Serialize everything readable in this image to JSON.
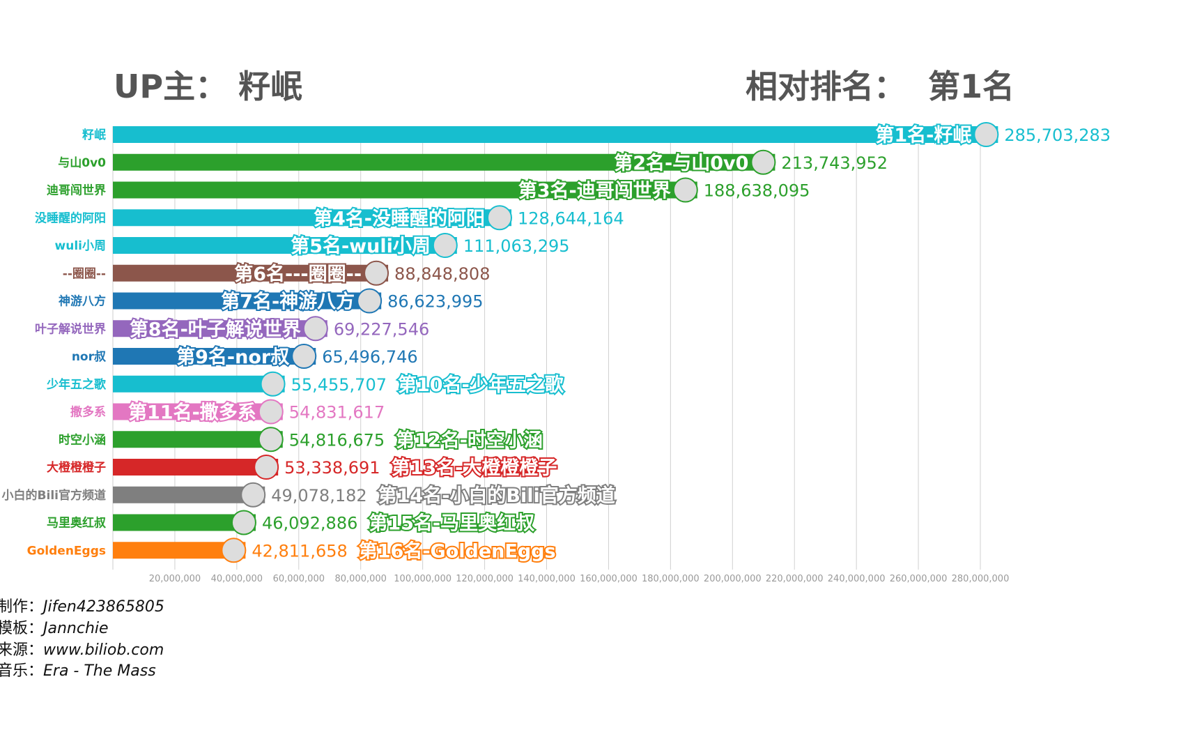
{
  "header": {
    "up_label": "UP主：",
    "up_name": "籽岷",
    "rank_label": "相对排名：",
    "rank_value": "第1名"
  },
  "chart_data": {
    "type": "bar",
    "orientation": "horizontal",
    "xlim": [
      0,
      290000000
    ],
    "grid": true,
    "xticks": [
      20000000,
      40000000,
      60000000,
      80000000,
      100000000,
      120000000,
      140000000,
      160000000,
      180000000,
      200000000,
      220000000,
      240000000,
      260000000,
      280000000
    ],
    "xtick_labels": [
      "20,000,000",
      "40,000,000",
      "60,000,000",
      "80,000,000",
      "100,000,000",
      "120,000,000",
      "140,000,000",
      "160,000,000",
      "180,000,000",
      "200,000,000",
      "220,000,000",
      "240,000,000",
      "260,000,000",
      "280,000,000"
    ],
    "bars": [
      {
        "name": "籽岷",
        "bar_label": "第1名-籽岷",
        "value": 285703283,
        "value_label": "285,703,283",
        "color": "#17becf"
      },
      {
        "name": "与山0v0",
        "bar_label": "第2名-与山0v0",
        "value": 213743952,
        "value_label": "213,743,952",
        "color": "#2ca02c"
      },
      {
        "name": "迪哥闯世界",
        "bar_label": "第3名-迪哥闯世界",
        "value": 188638095,
        "value_label": "188,638,095",
        "color": "#2ca02c"
      },
      {
        "name": "没睡醒的阿阳",
        "bar_label": "第4名-没睡醒的阿阳",
        "value": 128644164,
        "value_label": "128,644,164",
        "color": "#17becf"
      },
      {
        "name": "wuli小周",
        "bar_label": "第5名-wuli小周",
        "value": 111063295,
        "value_label": "111,063,295",
        "color": "#17becf"
      },
      {
        "name": "--圈圈--",
        "bar_label": "第6名---圈圈--",
        "value": 88848808,
        "value_label": "88,848,808",
        "color": "#8c564b"
      },
      {
        "name": "神游八方",
        "bar_label": "第7名-神游八方",
        "value": 86623995,
        "value_label": "86,623,995",
        "color": "#1f77b4"
      },
      {
        "name": "叶子解说世界",
        "bar_label": "第8名-叶子解说世界",
        "value": 69227546,
        "value_label": "69,227,546",
        "color": "#9467bd"
      },
      {
        "name": "nor叔",
        "bar_label": "第9名-nor叔",
        "value": 65496746,
        "value_label": "65,496,746",
        "color": "#1f77b4"
      },
      {
        "name": "少年五之歌",
        "bar_label": "第10名-少年五之歌",
        "value": 55455707,
        "value_label": "55,455,707",
        "color": "#17becf"
      },
      {
        "name": "撒多系",
        "bar_label": "第11名-撒多系",
        "value": 54831617,
        "value_label": "54,831,617",
        "color": "#e377c2"
      },
      {
        "name": "时空小涵",
        "bar_label": "第12名-时空小涵",
        "value": 54816675,
        "value_label": "54,816,675",
        "color": "#2ca02c"
      },
      {
        "name": "大橙橙橙子",
        "bar_label": "第13名-大橙橙橙子",
        "value": 53338691,
        "value_label": "53,338,691",
        "color": "#d62728"
      },
      {
        "name": "小白的Bili官方频道",
        "bar_label": "第14名-小白的Bili官方频道",
        "value": 49078182,
        "value_label": "49,078,182",
        "color": "#7f7f7f"
      },
      {
        "name": "马里奥红叔",
        "bar_label": "第15名-马里奥红叔",
        "value": 46092886,
        "value_label": "46,092,886",
        "color": "#2ca02c"
      },
      {
        "name": "GoldenEggs",
        "bar_label": "第16名-GoldenEggs",
        "value": 42811658,
        "value_label": "42,811,658",
        "color": "#ff7f0e"
      }
    ]
  },
  "footer": [
    {
      "label": "制作：",
      "value": "Jifen423865805"
    },
    {
      "label": "模板：",
      "value": "Jannchie"
    },
    {
      "label": "来源：",
      "value": "www.biliob.com"
    },
    {
      "label": "音乐：",
      "value": "Era - The Mass"
    }
  ]
}
